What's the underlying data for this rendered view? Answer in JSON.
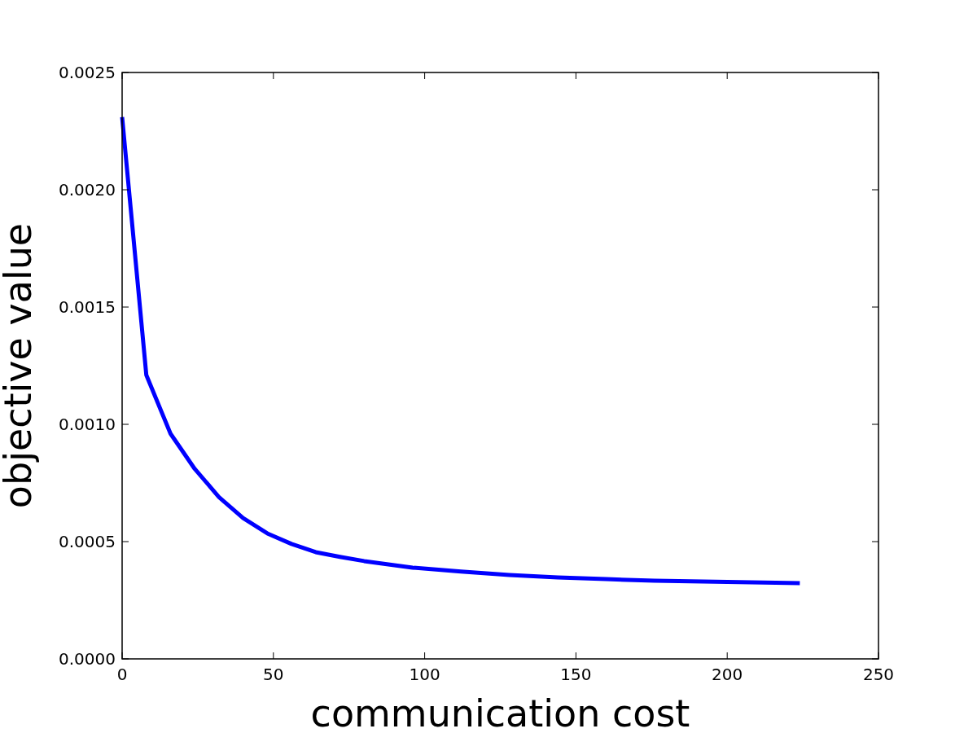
{
  "chart_data": {
    "type": "line",
    "xlabel": "communication cost",
    "ylabel": "objective value",
    "x": [
      0,
      8,
      16,
      24,
      32,
      40,
      48,
      56,
      64,
      72,
      80,
      96,
      112,
      128,
      144,
      160,
      176,
      192,
      208,
      224
    ],
    "series": [
      {
        "color": "#0000ff",
        "values": [
          0.00231,
          0.00121,
          0.00096,
          0.00081,
          0.00069,
          0.0006,
          0.000535,
          0.00049,
          0.000455,
          0.000435,
          0.000417,
          0.000389,
          0.000372,
          0.000358,
          0.000347,
          0.00034,
          0.000333,
          0.00033,
          0.000326,
          0.000323
        ]
      }
    ],
    "xlim": [
      0,
      250
    ],
    "xticks": [
      0,
      50,
      100,
      150,
      200,
      250
    ],
    "ylim": [
      0,
      0.0025
    ],
    "yticks": [
      {
        "value": 0,
        "label": "0.0000"
      },
      {
        "value": 0.0005,
        "label": "0.0005"
      },
      {
        "value": 0.001,
        "label": "0.0010"
      },
      {
        "value": 0.0015,
        "label": "0.0015"
      },
      {
        "value": 0.002,
        "label": "0.0020"
      },
      {
        "value": 0.0025,
        "label": "0.0025"
      }
    ],
    "grid": false,
    "marker": "none",
    "line_style": "solid"
  }
}
